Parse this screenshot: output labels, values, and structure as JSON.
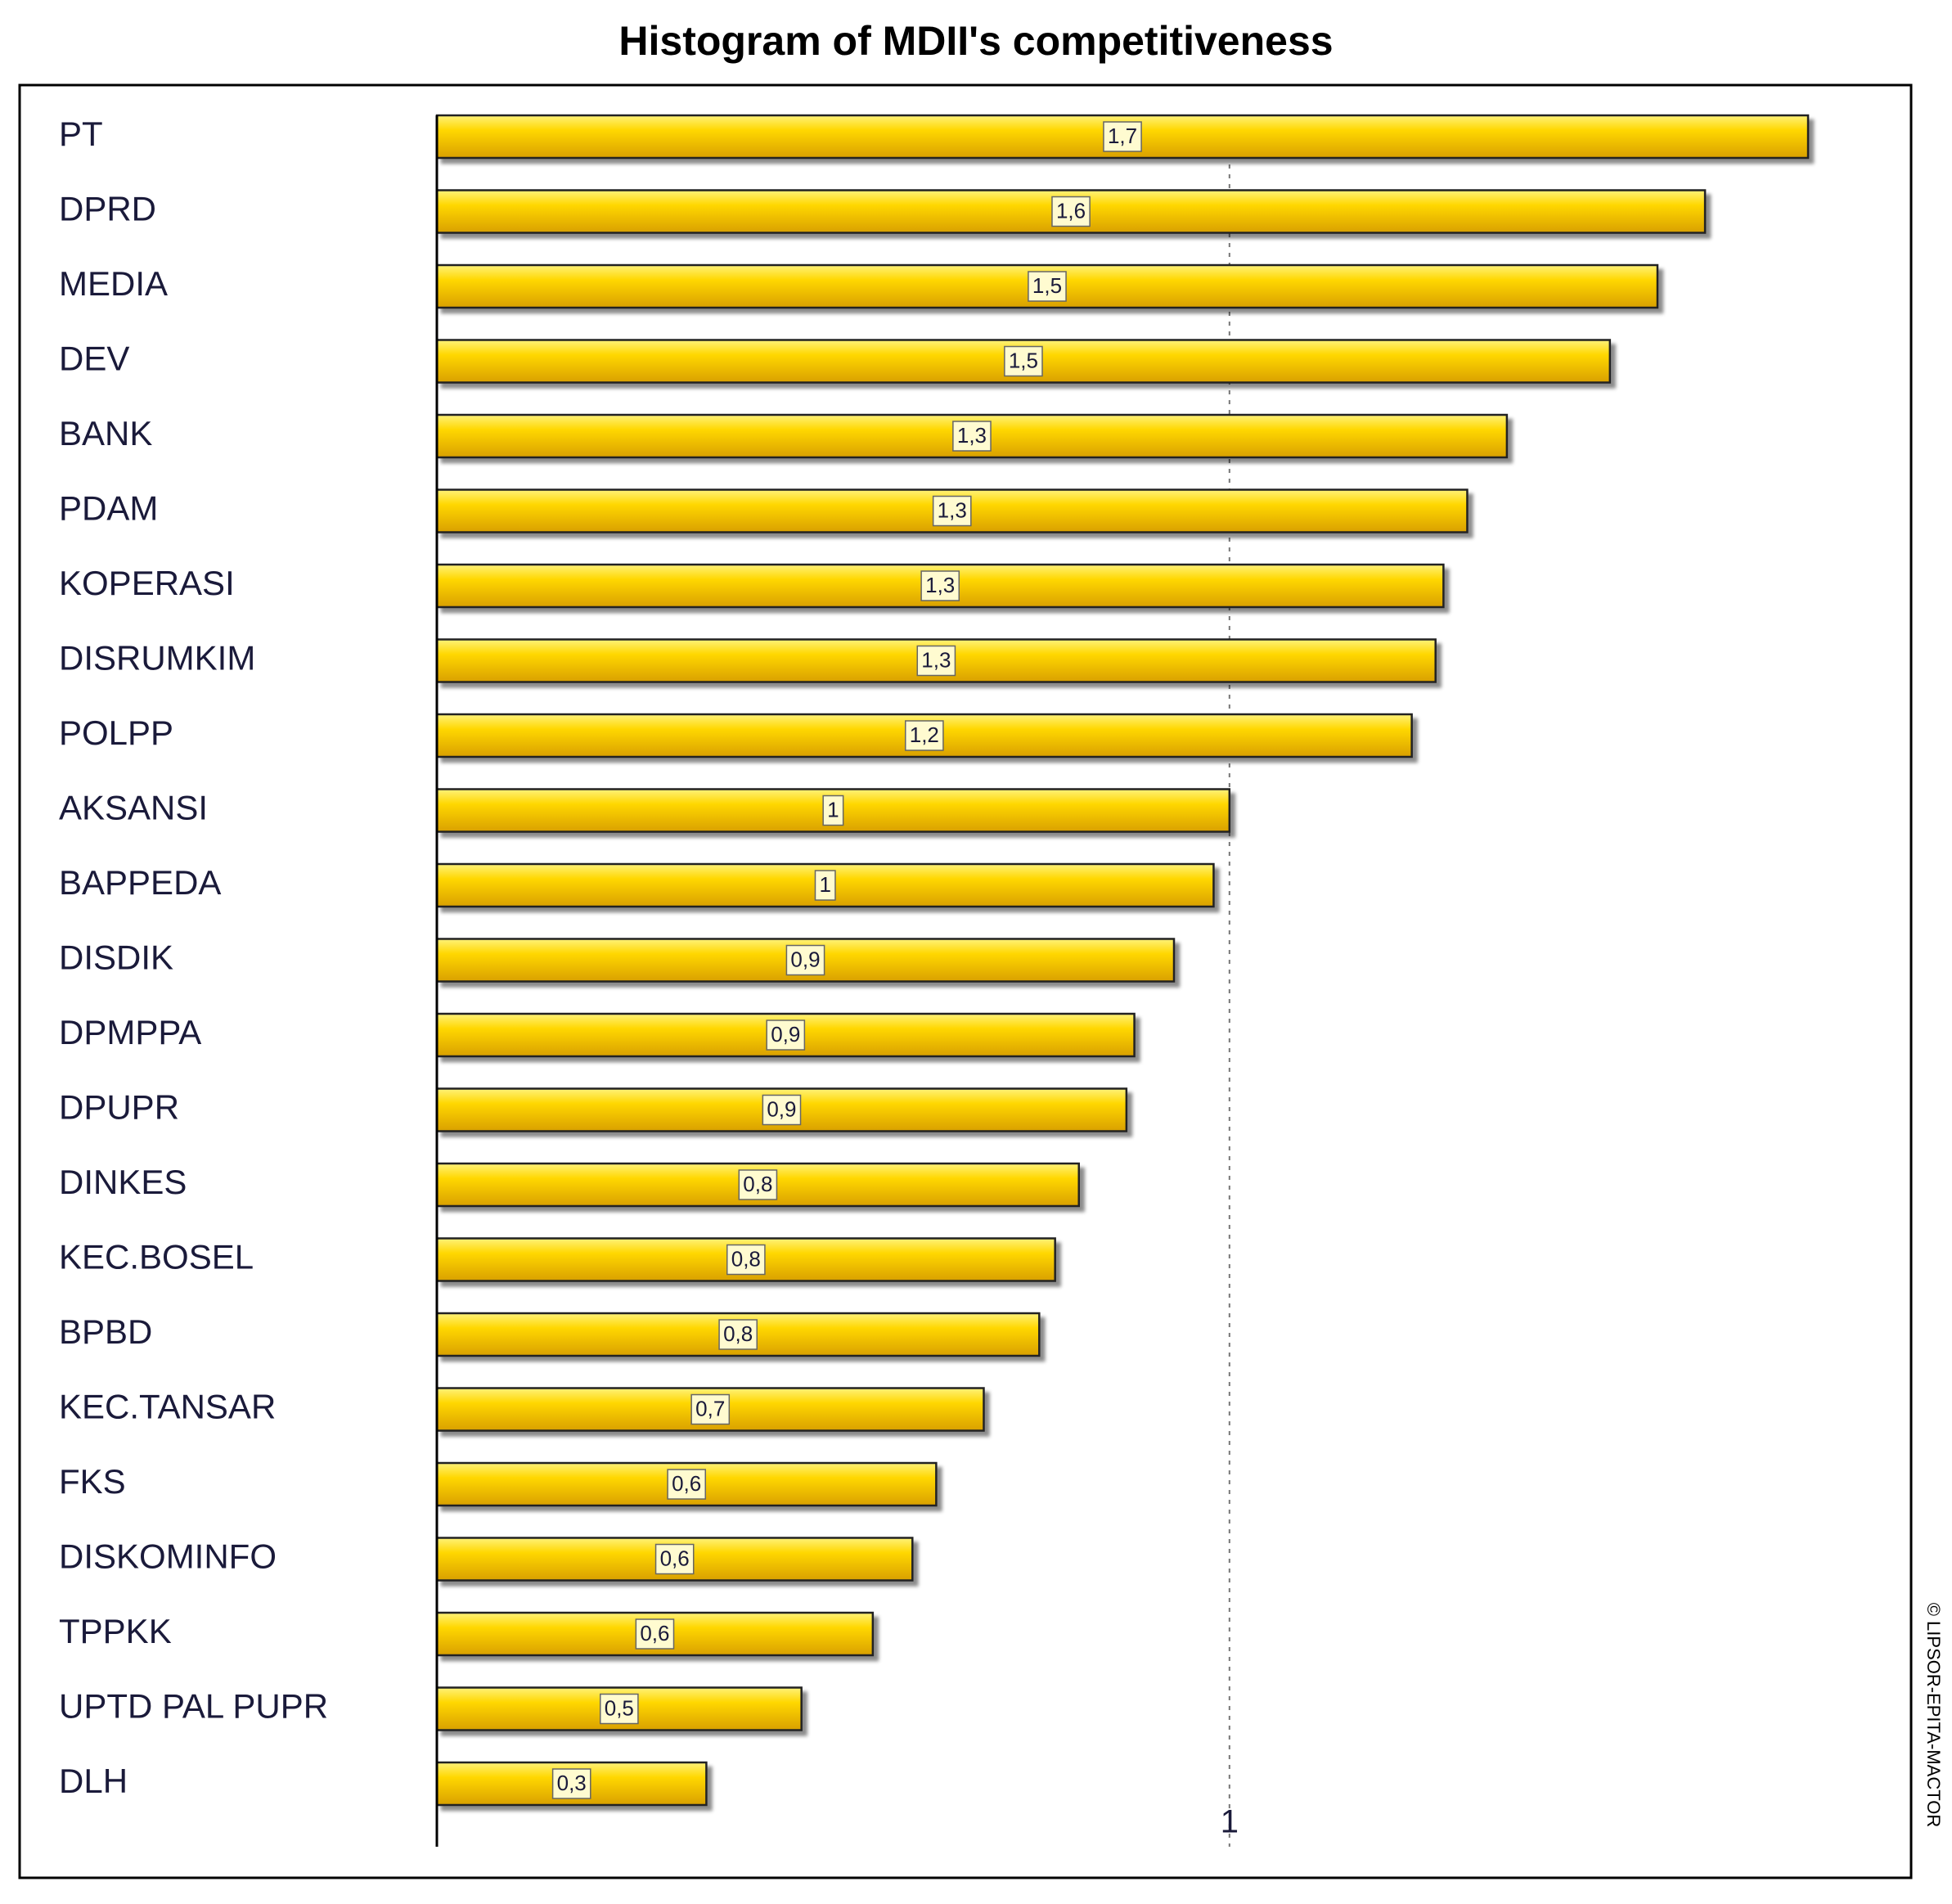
{
  "chart_data": {
    "type": "bar",
    "orientation": "horizontal",
    "title": "Histogram of MDII's competitiveness",
    "categories": [
      "PT",
      "DPRD",
      "MEDIA",
      "DEV",
      "BANK",
      "PDAM",
      "KOPERASI",
      "DISRUMKIM",
      "POLPP",
      "AKSANSI",
      "BAPPEDA",
      "DISDIK",
      "DPMPPA",
      "DPUPR",
      "DINKES",
      "KEC.BOSEL",
      "BPBD",
      "KEC.TANSAR",
      "FKS",
      "DISKOMINFO",
      "TPPKK",
      "UPTD PAL PUPR",
      "DLH"
    ],
    "values": [
      1.73,
      1.6,
      1.54,
      1.48,
      1.35,
      1.3,
      1.27,
      1.26,
      1.23,
      1.0,
      0.98,
      0.93,
      0.88,
      0.87,
      0.81,
      0.78,
      0.76,
      0.69,
      0.63,
      0.6,
      0.55,
      0.46,
      0.34
    ],
    "value_labels": [
      "1,7",
      "1,6",
      "1,5",
      "1,5",
      "1,3",
      "1,3",
      "1,3",
      "1,3",
      "1,2",
      "1",
      "1",
      "0,9",
      "0,9",
      "0,9",
      "0,8",
      "0,8",
      "0,8",
      "0,7",
      "0,6",
      "0,6",
      "0,6",
      "0,5",
      "0,3"
    ],
    "color": "#ffd700",
    "xlim": [
      0,
      1.86
    ],
    "xticks": [
      1
    ],
    "grid": true,
    "copyright": "© LIPSOR-EPITA-MACTOR"
  }
}
